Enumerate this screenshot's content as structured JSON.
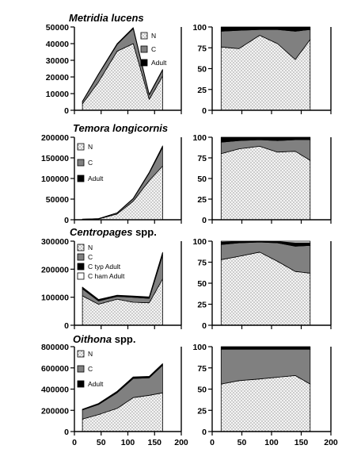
{
  "chart_data": [
    {
      "id": "metridia-abs",
      "type": "area",
      "stacked": true,
      "title_parts": [
        {
          "text": "Metridia lucens",
          "italic": true
        }
      ],
      "x": [
        15,
        45,
        80,
        110,
        140,
        165
      ],
      "series": [
        {
          "name": "N",
          "values": [
            3800,
            17000,
            35500,
            40000,
            6500,
            20500
          ],
          "color": "#f2f2f2",
          "pattern": "dots"
        },
        {
          "name": "C",
          "values": [
            1400,
            4500,
            4000,
            9000,
            2700,
            3600
          ],
          "color": "#808080"
        },
        {
          "name": "Adult",
          "values": [
            200,
            300,
            500,
            600,
            300,
            400
          ],
          "color": "#000000"
        }
      ],
      "xlim": [
        0,
        200
      ],
      "ylim": [
        0,
        50000
      ],
      "yticks": [
        "0",
        "10000",
        "20000",
        "30000",
        "40000",
        "50000"
      ],
      "legend_position": "top-right",
      "grid": false
    },
    {
      "id": "metridia-pct",
      "type": "area",
      "stacked": true,
      "x": [
        15,
        45,
        80,
        110,
        140,
        165
      ],
      "series": [
        {
          "values": [
            76,
            74,
            90,
            80,
            61,
            85
          ],
          "color": "#f2f2f2",
          "pattern": "dots"
        },
        {
          "values": [
            19,
            22,
            7,
            17,
            34,
            12
          ],
          "color": "#808080"
        },
        {
          "values": [
            5,
            4,
            3,
            3,
            5,
            3
          ],
          "color": "#000000"
        }
      ],
      "xlim": [
        0,
        200
      ],
      "ylim": [
        0,
        100
      ],
      "yticks": [
        "0",
        "25",
        "50",
        "75",
        "100"
      ],
      "grid": false
    },
    {
      "id": "temora-abs",
      "type": "area",
      "stacked": true,
      "title_parts": [
        {
          "text": "Temora longicornis",
          "italic": true
        }
      ],
      "x": [
        15,
        45,
        80,
        110,
        140,
        165
      ],
      "series": [
        {
          "name": "N",
          "values": [
            1000,
            2000,
            14000,
            45000,
            95000,
            130000
          ],
          "color": "#f2f2f2",
          "pattern": "dots"
        },
        {
          "name": "C",
          "values": [
            300,
            500,
            2500,
            6000,
            18000,
            45000
          ],
          "color": "#808080"
        },
        {
          "name": "Adult",
          "values": [
            100,
            200,
            500,
            1000,
            2000,
            4000
          ],
          "color": "#000000"
        }
      ],
      "xlim": [
        0,
        200
      ],
      "ylim": [
        0,
        200000
      ],
      "yticks": [
        "0",
        "50000",
        "100000",
        "150000",
        "200000"
      ],
      "legend_position": "left",
      "grid": false
    },
    {
      "id": "temora-pct",
      "type": "area",
      "stacked": true,
      "x": [
        15,
        45,
        80,
        110,
        140,
        165
      ],
      "series": [
        {
          "values": [
            80,
            86,
            89,
            82,
            83,
            72
          ],
          "color": "#f2f2f2",
          "pattern": "dots"
        },
        {
          "values": [
            14,
            10,
            8,
            14,
            14,
            25
          ],
          "color": "#808080"
        },
        {
          "values": [
            6,
            4,
            3,
            4,
            3,
            3
          ],
          "color": "#000000"
        }
      ],
      "xlim": [
        0,
        200
      ],
      "ylim": [
        0,
        100
      ],
      "yticks": [
        "0",
        "25",
        "50",
        "75",
        "100"
      ],
      "grid": false
    },
    {
      "id": "centropages-abs",
      "type": "area",
      "stacked": true,
      "title_parts": [
        {
          "text": "Centropages",
          "italic": true
        },
        {
          "text": " spp.",
          "italic": false
        }
      ],
      "x": [
        15,
        45,
        80,
        110,
        140,
        165
      ],
      "series": [
        {
          "name": "N",
          "values": [
            105000,
            75000,
            93000,
            82000,
            80000,
            165000
          ],
          "color": "#f2f2f2",
          "pattern": "dots"
        },
        {
          "name": "C",
          "values": [
            25000,
            12000,
            10000,
            18000,
            16000,
            85000
          ],
          "color": "#808080"
        },
        {
          "name": "C typ Adult",
          "values": [
            4000,
            3000,
            2500,
            3000,
            3500,
            7000
          ],
          "color": "#000000"
        },
        {
          "name": "C ham Adult",
          "values": [
            2000,
            2000,
            1500,
            1500,
            1500,
            3000
          ],
          "color": "#ffffff"
        }
      ],
      "xlim": [
        0,
        200
      ],
      "ylim": [
        0,
        300000
      ],
      "yticks": [
        "0",
        "100000",
        "200000",
        "300000"
      ],
      "legend_position": "top-left",
      "grid": false
    },
    {
      "id": "centropages-pct",
      "type": "area",
      "stacked": true,
      "x": [
        15,
        45,
        80,
        110,
        140,
        165
      ],
      "series": [
        {
          "values": [
            78,
            82,
            87,
            76,
            64,
            62
          ],
          "color": "#f2f2f2",
          "pattern": "dots"
        },
        {
          "values": [
            18,
            16,
            12,
            22,
            30,
            33
          ],
          "color": "#808080"
        },
        {
          "values": [
            3,
            1.5,
            1,
            1.5,
            4,
            3
          ],
          "color": "#000000"
        },
        {
          "values": [
            1,
            0.5,
            0,
            0.5,
            2,
            2
          ],
          "color": "#ffffff"
        }
      ],
      "xlim": [
        0,
        200
      ],
      "ylim": [
        0,
        100
      ],
      "yticks": [
        "0",
        "25",
        "50",
        "75",
        "100"
      ],
      "grid": false
    },
    {
      "id": "oithona-abs",
      "type": "area",
      "stacked": true,
      "title_parts": [
        {
          "text": "Oithona",
          "italic": true
        },
        {
          "text": " spp.",
          "italic": false
        }
      ],
      "x": [
        15,
        45,
        80,
        110,
        140,
        165
      ],
      "series": [
        {
          "name": "N",
          "values": [
            118000,
            160000,
            218000,
            320000,
            342000,
            365000
          ],
          "color": "#f2f2f2",
          "pattern": "dots"
        },
        {
          "name": "C",
          "values": [
            85000,
            95000,
            148000,
            180000,
            165000,
            260000
          ],
          "color": "#808080"
        },
        {
          "name": "Adult",
          "values": [
            7000,
            10000,
            14000,
            15000,
            13000,
            15000
          ],
          "color": "#000000"
        }
      ],
      "xlim": [
        0,
        200
      ],
      "ylim": [
        0,
        800000
      ],
      "yticks": [
        "0",
        "200000",
        "400000",
        "600000",
        "800000"
      ],
      "xticks": [
        "0",
        "50",
        "100",
        "150",
        "200"
      ],
      "legend_position": "top-left",
      "grid": false
    },
    {
      "id": "oithona-pct",
      "type": "area",
      "stacked": true,
      "x": [
        15,
        45,
        80,
        110,
        140,
        165
      ],
      "series": [
        {
          "values": [
            56,
            60,
            62,
            64,
            66,
            56
          ],
          "color": "#f2f2f2",
          "pattern": "dots"
        },
        {
          "values": [
            41,
            37,
            35,
            33,
            31,
            41
          ],
          "color": "#808080"
        },
        {
          "values": [
            3,
            3,
            3,
            3,
            3,
            3
          ],
          "color": "#000000"
        }
      ],
      "xlim": [
        0,
        200
      ],
      "ylim": [
        0,
        100
      ],
      "yticks": [
        "0",
        "25",
        "50",
        "75",
        "100"
      ],
      "xticks": [
        "0",
        "50",
        "100",
        "150",
        "200"
      ],
      "grid": false
    }
  ]
}
